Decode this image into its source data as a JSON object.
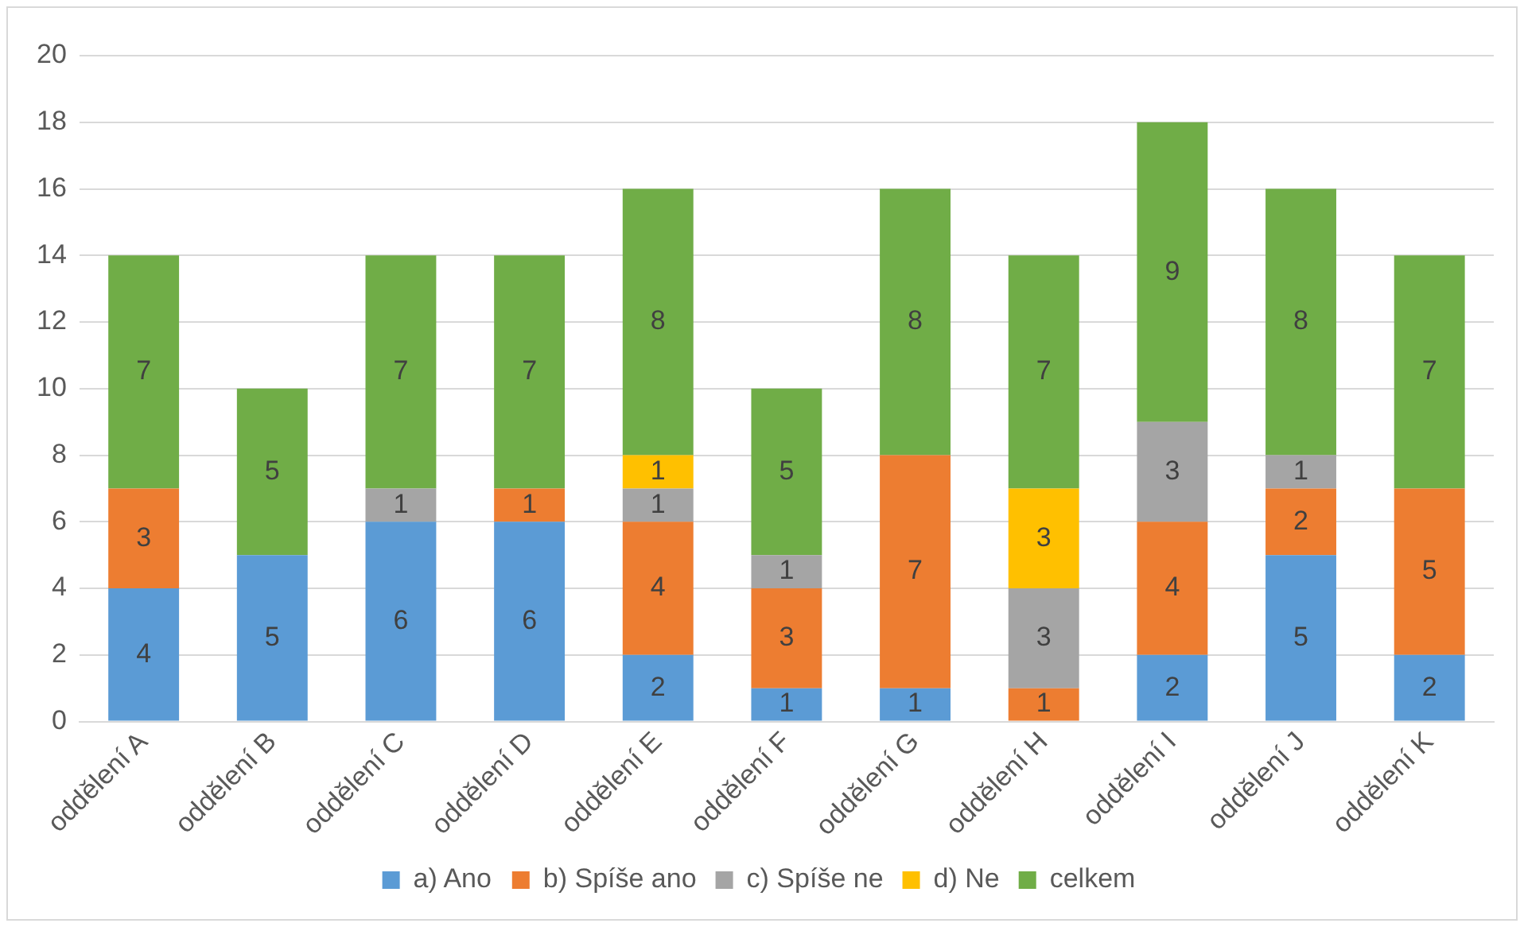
{
  "chart_data": {
    "type": "bar",
    "stacked": true,
    "categories": [
      "oddělení A",
      "oddělení B",
      "oddělení C",
      "oddělení D",
      "oddělení E",
      "oddělení F",
      "oddělení G",
      "oddělení H",
      "oddělení I",
      "oddělení J",
      "oddělení K"
    ],
    "series": [
      {
        "name": "a) Ano",
        "color": "#5b9bd5",
        "values": [
          4,
          5,
          6,
          6,
          2,
          1,
          1,
          null,
          2,
          5,
          2
        ]
      },
      {
        "name": "b) Spíše ano",
        "color": "#ed7d31",
        "values": [
          3,
          null,
          null,
          1,
          4,
          3,
          7,
          1,
          4,
          2,
          5
        ]
      },
      {
        "name": "c) Spíše ne",
        "color": "#a5a5a5",
        "values": [
          null,
          null,
          1,
          null,
          1,
          1,
          null,
          3,
          3,
          1,
          null
        ]
      },
      {
        "name": "d) Ne",
        "color": "#ffc000",
        "values": [
          null,
          null,
          null,
          null,
          1,
          null,
          null,
          3,
          null,
          null,
          null
        ]
      },
      {
        "name": "celkem",
        "color": "#70ad47",
        "values": [
          7,
          5,
          7,
          7,
          8,
          5,
          8,
          7,
          9,
          8,
          7
        ]
      }
    ],
    "ylim": [
      0,
      20
    ],
    "yticks": [
      0,
      2,
      4,
      6,
      8,
      10,
      12,
      14,
      16,
      18,
      20
    ],
    "grid": "y",
    "legend": "bottom",
    "data_labels": true
  }
}
